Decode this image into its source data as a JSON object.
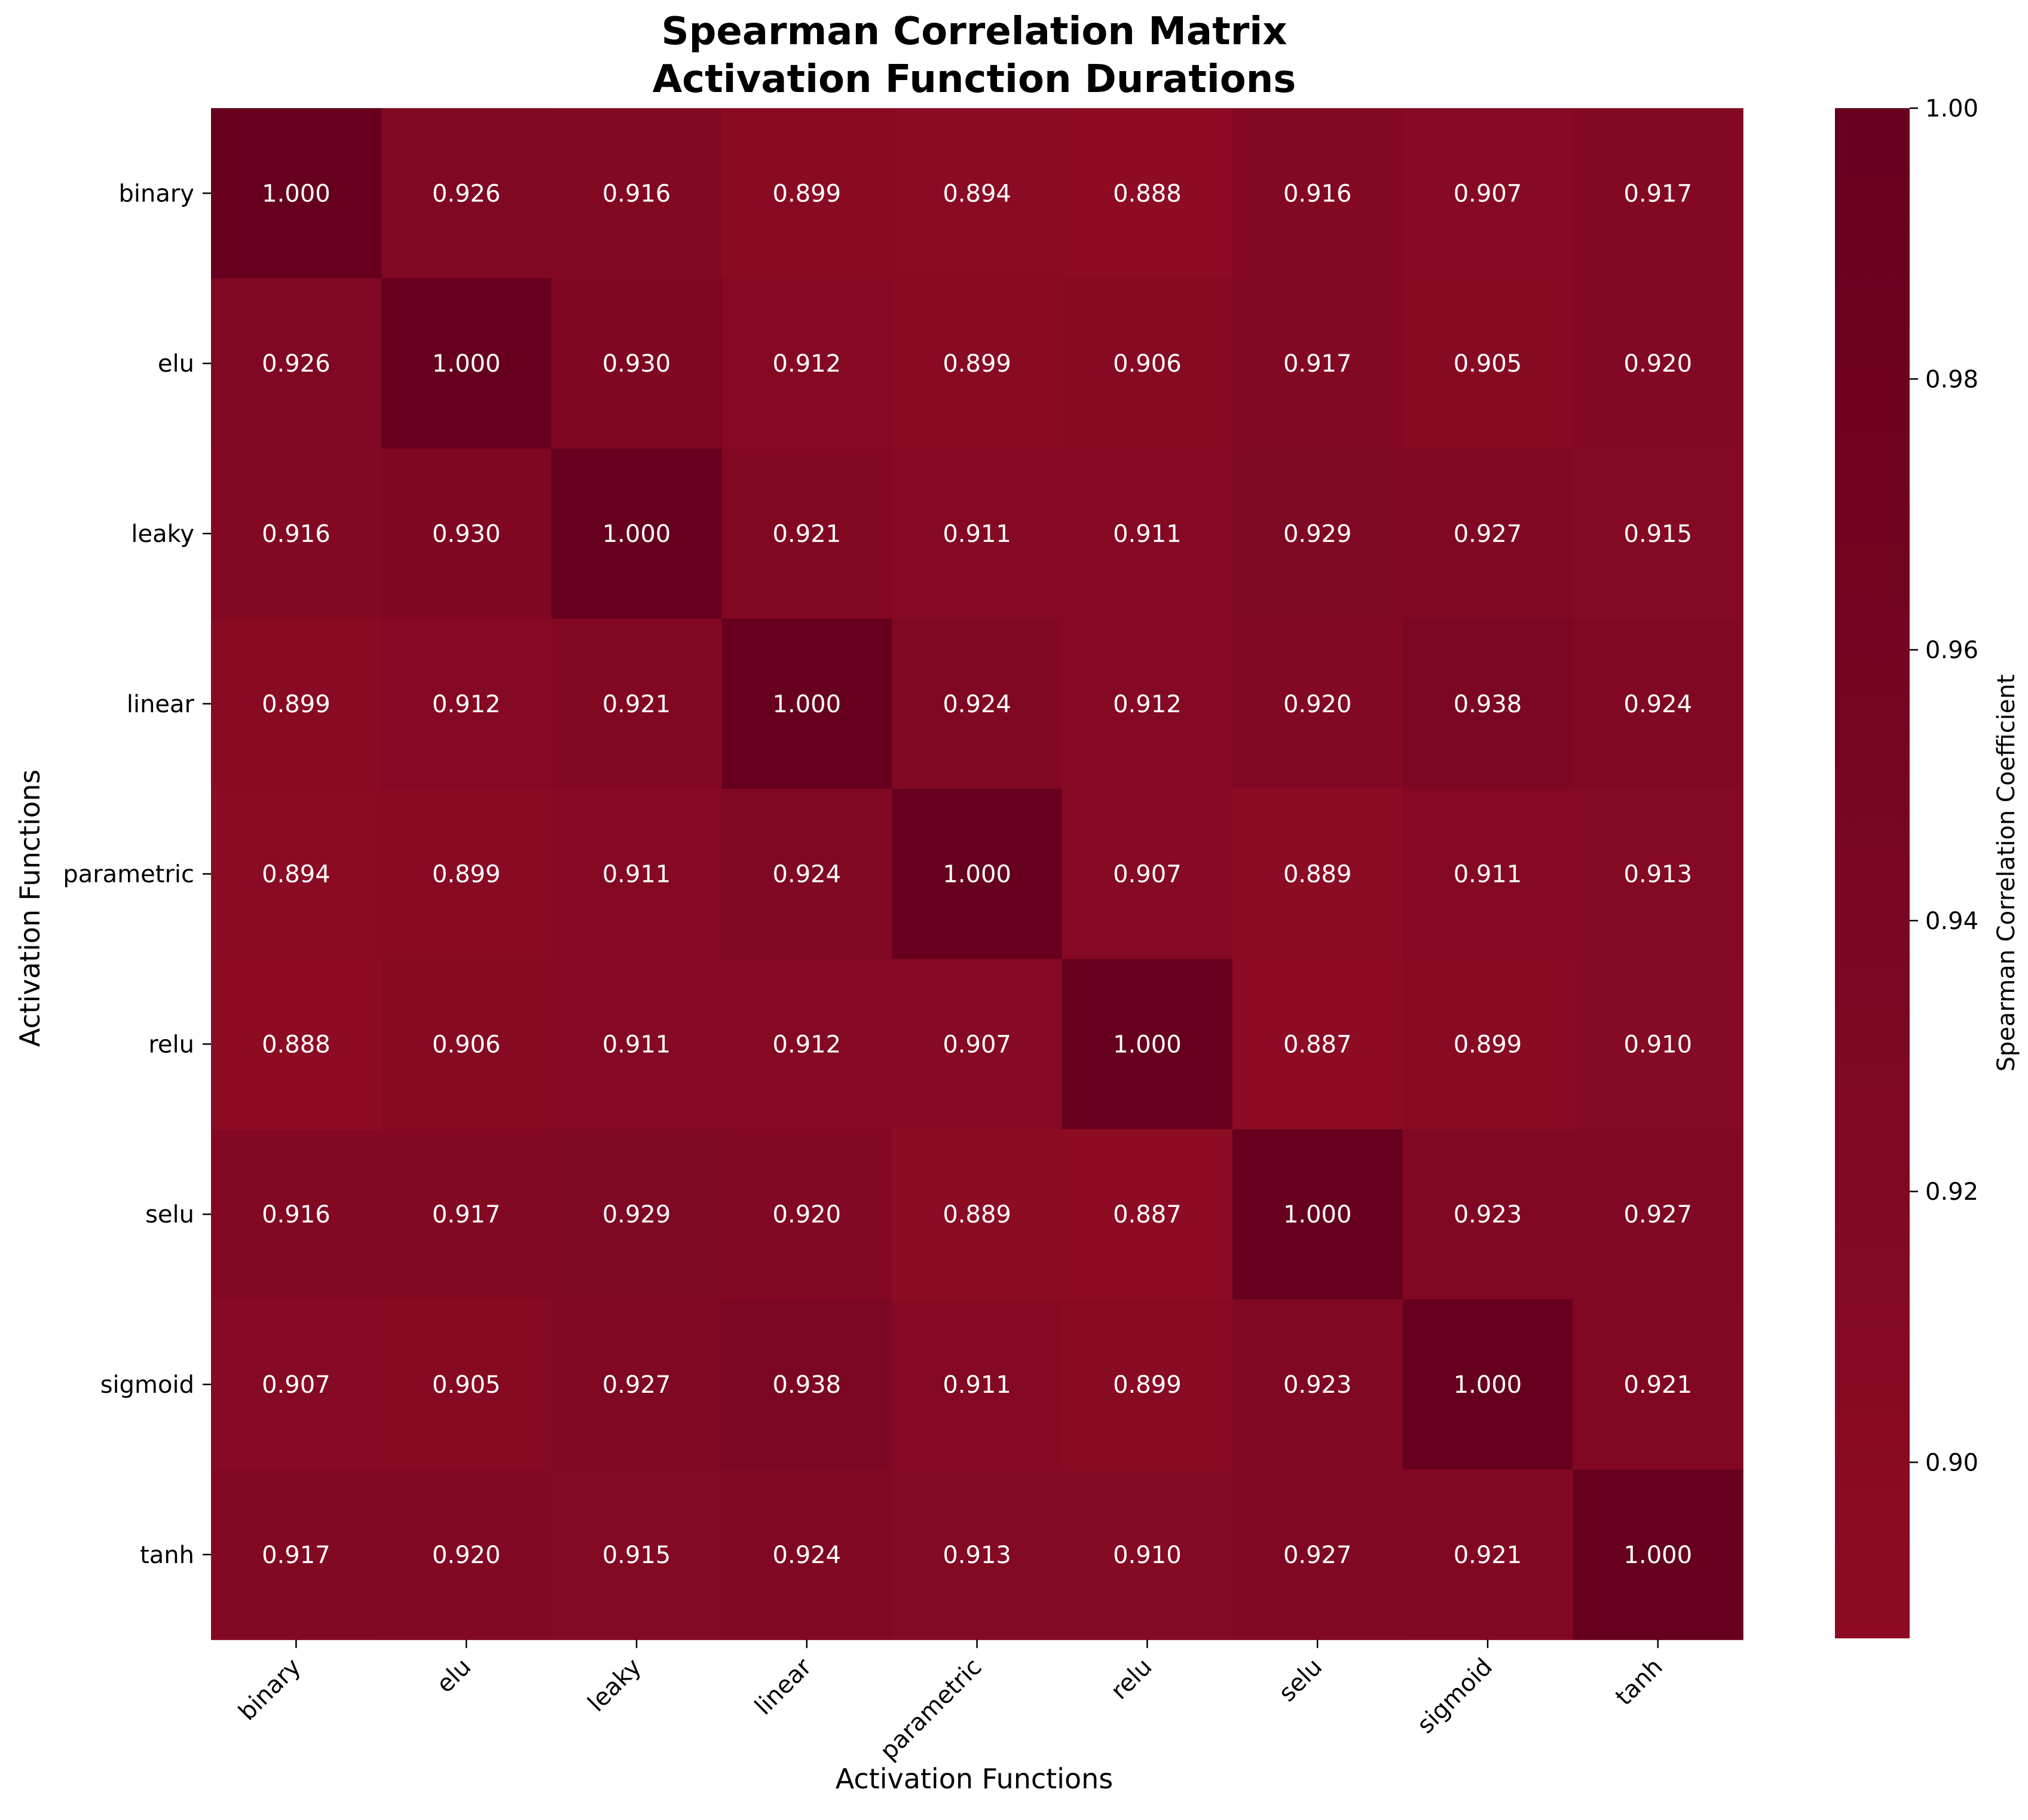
{
  "chart_data": {
    "type": "heatmap",
    "title_lines": [
      "Spearman Correlation Matrix",
      "Activation Function Durations"
    ],
    "xlabel": "Activation Functions",
    "ylabel": "Activation Functions",
    "categories": [
      "binary",
      "elu",
      "leaky",
      "linear",
      "parametric",
      "relu",
      "selu",
      "sigmoid",
      "tanh"
    ],
    "matrix": [
      [
        1.0,
        0.926,
        0.916,
        0.899,
        0.894,
        0.888,
        0.916,
        0.907,
        0.917
      ],
      [
        0.926,
        1.0,
        0.93,
        0.912,
        0.899,
        0.906,
        0.917,
        0.905,
        0.92
      ],
      [
        0.916,
        0.93,
        1.0,
        0.921,
        0.911,
        0.911,
        0.929,
        0.927,
        0.915
      ],
      [
        0.899,
        0.912,
        0.921,
        1.0,
        0.924,
        0.912,
        0.92,
        0.938,
        0.924
      ],
      [
        0.894,
        0.899,
        0.911,
        0.924,
        1.0,
        0.907,
        0.889,
        0.911,
        0.913
      ],
      [
        0.888,
        0.906,
        0.911,
        0.912,
        0.907,
        1.0,
        0.887,
        0.899,
        0.91
      ],
      [
        0.916,
        0.917,
        0.929,
        0.92,
        0.889,
        0.887,
        1.0,
        0.923,
        0.927
      ],
      [
        0.907,
        0.905,
        0.927,
        0.938,
        0.911,
        0.899,
        0.923,
        1.0,
        0.921
      ],
      [
        0.917,
        0.92,
        0.915,
        0.924,
        0.913,
        0.91,
        0.927,
        0.921,
        1.0
      ]
    ],
    "value_format_decimals": 3,
    "colorbar": {
      "label": "Spearman Correlation Coefficient",
      "range": [
        0.887,
        1.0
      ],
      "ticks": [
        "0.90",
        "0.92",
        "0.94",
        "0.96",
        "0.98",
        "1.00"
      ]
    },
    "colors": {
      "low": "#8d0c24",
      "high": "#67001f",
      "cell_text": "#ffffff"
    }
  }
}
